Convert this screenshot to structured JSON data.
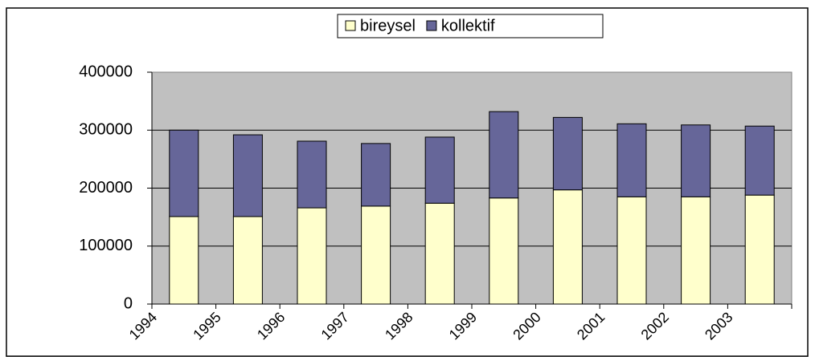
{
  "chart_data": {
    "type": "stacked_bar",
    "categories": [
      "1994",
      "1995",
      "1996",
      "1997",
      "1998",
      "1999",
      "2000",
      "2001",
      "2002",
      "2003"
    ],
    "series": [
      {
        "name": "bireysel",
        "color": "#ffffcc",
        "values": [
          151000,
          151000,
          166000,
          169000,
          174000,
          183000,
          197000,
          185000,
          185000,
          188000
        ]
      },
      {
        "name": "kollektif",
        "color": "#666699",
        "values": [
          149000,
          141000,
          115000,
          108000,
          114000,
          149000,
          125000,
          126000,
          124000,
          119000
        ]
      }
    ],
    "ylim": [
      0,
      400000
    ],
    "yticks": [
      0,
      100000,
      200000,
      300000,
      400000
    ],
    "grid": true,
    "plot_background": "#c0c0c0",
    "legend": "top"
  }
}
